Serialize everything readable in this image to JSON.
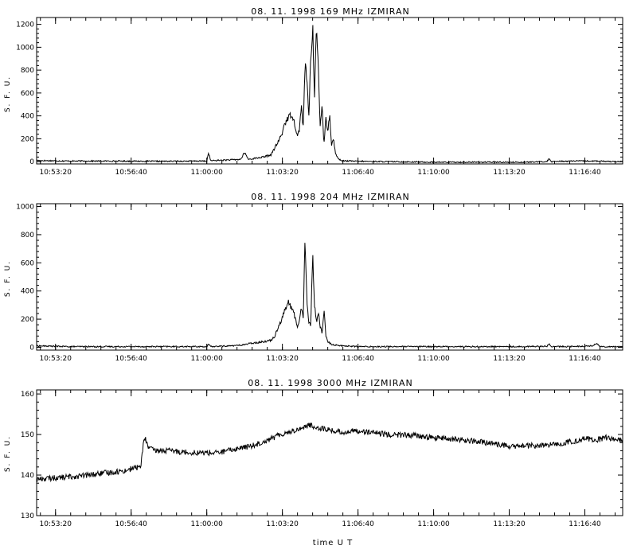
{
  "chart_data": [
    {
      "type": "line",
      "title": "08. 11. 1998    169 MHz    IZMIRAN",
      "ylabel": "S. F. U.",
      "xlabel": "",
      "ylim": [
        -20,
        1260
      ],
      "yticks": [
        0,
        200,
        400,
        600,
        800,
        1000,
        1200
      ],
      "xlim": [
        "10:52:30",
        "11:18:20"
      ],
      "xtick_labels": [
        "10:53:20",
        "10:56:40",
        "11:00:00",
        "11:03:20",
        "11:06:40",
        "11:10:00",
        "11:13:20",
        "11:16:40"
      ],
      "series": [
        {
          "x": [
            "10:52:30",
            "10:54:00",
            "10:56:00",
            "10:58:00",
            "10:59:30",
            "11:00:00",
            "11:00:05",
            "11:00:10",
            "11:01:00",
            "11:01:30",
            "11:01:40",
            "11:01:50",
            "11:02:00",
            "11:02:30",
            "11:02:50",
            "11:03:00",
            "11:03:10",
            "11:03:20",
            "11:03:25",
            "11:03:35",
            "11:03:45",
            "11:03:55",
            "11:04:00",
            "11:04:05",
            "11:04:10",
            "11:04:15",
            "11:04:20",
            "11:04:25",
            "11:04:30",
            "11:04:35",
            "11:04:40",
            "11:04:45",
            "11:04:50",
            "11:04:55",
            "11:05:00",
            "11:05:05",
            "11:05:10",
            "11:05:15",
            "11:05:20",
            "11:05:25",
            "11:05:30",
            "11:05:35",
            "11:05:40",
            "11:05:45",
            "11:05:50",
            "11:05:55",
            "11:06:00",
            "11:06:10",
            "11:06:20",
            "11:06:40",
            "11:08:00",
            "11:10:00",
            "11:12:00",
            "11:14:00",
            "11:15:00",
            "11:15:05",
            "11:15:10",
            "11:16:00",
            "11:17:00",
            "11:18:20"
          ],
          "values": [
            10,
            5,
            5,
            3,
            5,
            5,
            80,
            8,
            15,
            20,
            80,
            20,
            25,
            40,
            60,
            120,
            180,
            250,
            330,
            380,
            420,
            300,
            220,
            280,
            500,
            300,
            850,
            700,
            400,
            900,
            1180,
            600,
            1170,
            800,
            300,
            500,
            150,
            400,
            250,
            420,
            150,
            200,
            80,
            40,
            20,
            12,
            8,
            5,
            5,
            3,
            0,
            -5,
            -5,
            -5,
            0,
            30,
            0,
            5,
            5,
            0
          ]
        }
      ]
    },
    {
      "type": "line",
      "title": "08. 11. 1998    204 MHz    IZMIRAN",
      "ylabel": "S. F. U.",
      "xlabel": "",
      "ylim": [
        -20,
        1020
      ],
      "yticks": [
        0,
        200,
        400,
        600,
        800,
        1000
      ],
      "xlim": [
        "10:52:30",
        "11:18:20"
      ],
      "xtick_labels": [
        "10:53:20",
        "10:56:40",
        "11:00:00",
        "11:03:20",
        "11:06:40",
        "11:10:00",
        "11:13:20",
        "11:16:40"
      ],
      "series": [
        {
          "x": [
            "10:52:30",
            "10:54:00",
            "10:56:00",
            "10:58:00",
            "11:00:00",
            "11:00:05",
            "11:00:10",
            "11:01:00",
            "11:01:30",
            "11:01:40",
            "11:01:50",
            "11:02:00",
            "11:02:30",
            "11:02:50",
            "11:03:00",
            "11:03:05",
            "11:03:15",
            "11:03:25",
            "11:03:35",
            "11:03:45",
            "11:03:55",
            "11:04:00",
            "11:04:05",
            "11:04:10",
            "11:04:15",
            "11:04:20",
            "11:04:25",
            "11:04:30",
            "11:04:35",
            "11:04:40",
            "11:04:45",
            "11:04:50",
            "11:04:55",
            "11:05:00",
            "11:05:05",
            "11:05:10",
            "11:05:15",
            "11:05:20",
            "11:05:30",
            "11:06:00",
            "11:06:20",
            "11:06:40",
            "11:08:00",
            "11:10:00",
            "11:12:00",
            "11:14:00",
            "11:15:00",
            "11:15:05",
            "11:15:10",
            "11:16:00",
            "11:17:00",
            "11:17:10",
            "11:17:20",
            "11:18:20"
          ],
          "values": [
            10,
            5,
            5,
            5,
            5,
            20,
            5,
            10,
            15,
            20,
            25,
            30,
            40,
            50,
            80,
            120,
            180,
            250,
            320,
            280,
            200,
            150,
            180,
            300,
            200,
            800,
            300,
            180,
            150,
            680,
            300,
            180,
            250,
            150,
            100,
            270,
            80,
            40,
            20,
            10,
            8,
            5,
            5,
            5,
            5,
            5,
            8,
            25,
            5,
            5,
            10,
            30,
            5,
            5
          ]
        }
      ]
    },
    {
      "type": "line",
      "title": "08. 11. 1998    3000 MHz    IZMIRAN",
      "ylabel": "S. F. U.",
      "xlabel": "time   U T",
      "ylim": [
        130,
        161
      ],
      "yticks": [
        130,
        140,
        150,
        160
      ],
      "xlim": [
        "10:52:30",
        "11:18:20"
      ],
      "xtick_labels": [
        "10:53:20",
        "10:56:40",
        "11:00:00",
        "11:03:20",
        "11:06:40",
        "11:10:00",
        "11:13:20",
        "11:16:40"
      ],
      "series": [
        {
          "x": [
            "10:52:30",
            "10:53:20",
            "10:54:30",
            "10:55:30",
            "10:56:20",
            "10:56:50",
            "10:57:05",
            "10:57:15",
            "10:57:25",
            "10:57:40",
            "10:58:20",
            "10:59:30",
            "11:00:30",
            "11:01:20",
            "11:02:00",
            "11:02:50",
            "11:03:20",
            "11:04:00",
            "11:04:30",
            "11:05:00",
            "11:05:30",
            "11:06:00",
            "11:06:40",
            "11:07:20",
            "11:08:00",
            "11:09:00",
            "11:10:00",
            "11:11:00",
            "11:12:00",
            "11:13:00",
            "11:13:20",
            "11:14:00",
            "11:15:00",
            "11:15:40",
            "11:16:20",
            "11:16:40",
            "11:17:10",
            "11:17:40",
            "11:18:20"
          ],
          "values": [
            139,
            139.3,
            139.8,
            140.5,
            141,
            141.8,
            142,
            149.5,
            147,
            146,
            146,
            145.5,
            145.5,
            146.5,
            147.2,
            149,
            150.2,
            151.2,
            152.3,
            151.6,
            151,
            150.5,
            151,
            150.4,
            150,
            149.8,
            149.2,
            148.8,
            148.2,
            147.5,
            147,
            147.2,
            147.3,
            147.8,
            148.5,
            149,
            148.6,
            149.3,
            148.4
          ]
        }
      ]
    }
  ]
}
